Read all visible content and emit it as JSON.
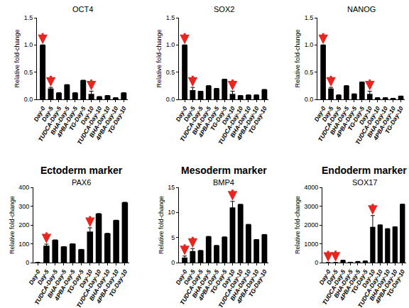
{
  "chart_data": [
    {
      "type": "bar",
      "title": "OCT4",
      "ylabel": "Relative fold-change",
      "categories": [
        "Day-0",
        "Day-5",
        "TUDCA-Day-5",
        "BHA-Day-5",
        "4PBA-Day-5",
        "TG-Day-5",
        "Day-10",
        "TUDCA-Day-10",
        "BHA-Day-10",
        "4PBA-Day-10",
        "TG-Day-10"
      ],
      "values": [
        1.0,
        0.2,
        0.12,
        0.27,
        0.12,
        0.35,
        0.1,
        0.05,
        0.07,
        0.03,
        0.12
      ],
      "errors": [
        null,
        0.02,
        null,
        null,
        null,
        null,
        0.05,
        null,
        null,
        null,
        null
      ],
      "color": "#000000",
      "grid": false,
      "ylim": [
        0,
        1.5
      ],
      "yticks": [
        {
          "value": 0,
          "label": "0.0"
        },
        0.5,
        {
          "value": 1,
          "label": "1.0"
        },
        1.5
      ],
      "annotations": [
        {
          "category": "Day-0",
          "marker": "arrow",
          "color": "#e8251f"
        },
        {
          "category": "Day-5",
          "marker": "arrow",
          "color": "#e8251f"
        },
        {
          "category": "Day-10",
          "marker": "arrow",
          "color": "#e8251f"
        }
      ]
    },
    {
      "type": "bar",
      "title": "SOX2",
      "ylabel": "Relative fold-change",
      "categories": [
        "Day-0",
        "Day-5",
        "TUDCA-Day-5",
        "BHA-Day-5",
        "4PBA-Day-5",
        "TG-Day-5",
        "Day-10",
        "TUDCA-Day-10",
        "BHA-Day-10",
        "4PBA-Day-10",
        "TG-Day-10"
      ],
      "values": [
        1.0,
        0.17,
        0.15,
        0.25,
        0.2,
        0.37,
        0.1,
        0.07,
        0.08,
        0.08,
        0.18
      ],
      "errors": [
        null,
        0.05,
        null,
        null,
        null,
        null,
        0.05,
        null,
        null,
        null,
        null
      ],
      "color": "#000000",
      "grid": false,
      "ylim": [
        0,
        1.5
      ],
      "yticks": [
        {
          "value": 0,
          "label": "0.0"
        },
        0.5,
        {
          "value": 1,
          "label": "1.0"
        },
        1.5
      ],
      "annotations": [
        {
          "category": "Day-0",
          "marker": "arrow",
          "color": "#e8251f"
        },
        {
          "category": "Day-5",
          "marker": "arrow",
          "color": "#e8251f"
        },
        {
          "category": "Day-10",
          "marker": "arrow",
          "color": "#e8251f"
        }
      ]
    },
    {
      "type": "bar",
      "title": "NANOG",
      "ylabel": "Relative fold-change",
      "categories": [
        "Day-0",
        "Day-5",
        "TUDCA-Day-5",
        "BHA-Day-5",
        "4PBA-Day-5",
        "TG-Day-5",
        "Day-10",
        "TUDCA-Day-10",
        "BHA-Day-10",
        "4PBA-Day-10",
        "TG-Day-10"
      ],
      "values": [
        1.0,
        0.2,
        0.08,
        0.25,
        0.1,
        0.32,
        0.1,
        0.03,
        0.03,
        0.02,
        0.06
      ],
      "errors": [
        null,
        0.02,
        null,
        null,
        null,
        null,
        0.05,
        null,
        null,
        null,
        null
      ],
      "color": "#000000",
      "grid": false,
      "ylim": [
        0,
        1.5
      ],
      "yticks": [
        {
          "value": 0,
          "label": "0.0"
        },
        0.5,
        {
          "value": 1,
          "label": "1.0"
        },
        1.5
      ],
      "annotations": [
        {
          "category": "Day-0",
          "marker": "arrow",
          "color": "#e8251f"
        },
        {
          "category": "Day-5",
          "marker": "arrow",
          "color": "#e8251f"
        },
        {
          "category": "Day-10",
          "marker": "arrow",
          "color": "#e8251f"
        }
      ]
    },
    {
      "type": "bar",
      "title": "Ectoderm marker",
      "subtitle": "PAX6",
      "ylabel": "Relative fold-change",
      "categories": [
        "Day-0",
        "Day-5",
        "TUDCA-Day-5",
        "BHA-Day-5",
        "4PBA-Day-5",
        "TG-Day-5",
        "Day-10",
        "TUDCA-Day-10",
        "BHA-Day-10",
        "4PBA-Day-10",
        "TG-Day-10"
      ],
      "values": [
        1,
        90,
        120,
        85,
        100,
        70,
        165,
        260,
        155,
        225,
        320
      ],
      "errors": [
        null,
        8,
        null,
        null,
        null,
        null,
        20,
        null,
        null,
        null,
        null
      ],
      "color": "#000000",
      "grid": false,
      "ylim": [
        0,
        400
      ],
      "yticks": [
        0,
        100,
        200,
        300,
        400
      ],
      "annotations": [
        {
          "category": "Day-5",
          "marker": "arrow",
          "color": "#e8251f"
        },
        {
          "category": "Day-10",
          "marker": "arrow",
          "color": "#e8251f"
        }
      ]
    },
    {
      "type": "bar",
      "title": "Mesoderm marker",
      "subtitle": "BMP4",
      "ylabel": "Relative fold-change",
      "categories": [
        "Day-0",
        "Day-5",
        "TUDCA-Day-5",
        "BHA-Day-5",
        "4PBA-Day-5",
        "TG-Day-5",
        "Day-10",
        "TUDCA-Day-10",
        "BHA-Day-10",
        "4PBA-Day-10",
        "TG-Day-10"
      ],
      "values": [
        1,
        2.3,
        2.4,
        5.2,
        3.4,
        5.1,
        11,
        11.6,
        7.6,
        4.6,
        5.6
      ],
      "errors": [
        0.3,
        0.5,
        null,
        null,
        null,
        null,
        1.2,
        null,
        null,
        null,
        null
      ],
      "color": "#000000",
      "grid": false,
      "ylim": [
        0,
        15
      ],
      "yticks": [
        0,
        5,
        10,
        15
      ],
      "annotations": [
        {
          "category": "Day-0",
          "marker": "arrow",
          "color": "#e8251f"
        },
        {
          "category": "Day-5",
          "marker": "arrow",
          "color": "#e8251f"
        },
        {
          "category": "Day-10",
          "marker": "arrow",
          "color": "#e8251f"
        }
      ]
    },
    {
      "type": "bar",
      "title": "Endoderm marker",
      "subtitle": "SOX17",
      "ylabel": "Relative fold-change",
      "categories": [
        "Day-0",
        "Day-5",
        "TUDCA-Day-5",
        "BHA-Day-5",
        "4PBA-Day-5",
        "TG-Day-5",
        "Day-10",
        "TUDCA-Day-10",
        "BHA-Day-10",
        "4PBA-Day-10",
        "TG-Day-10"
      ],
      "values": [
        1,
        5,
        120,
        20,
        60,
        80,
        1900,
        2000,
        1800,
        1900,
        3100
      ],
      "errors": [
        null,
        null,
        null,
        null,
        null,
        null,
        600,
        null,
        null,
        null,
        null
      ],
      "color": "#000000",
      "grid": false,
      "ylim": [
        0,
        4000
      ],
      "yticks": [
        0,
        1000,
        2000,
        3000,
        4000
      ],
      "annotations": [
        {
          "category": "Day-0",
          "marker": "arrow",
          "color": "#e8251f"
        },
        {
          "category": "Day-5",
          "marker": "arrow",
          "color": "#e8251f"
        },
        {
          "category": "Day-10",
          "marker": "arrow",
          "color": "#e8251f"
        }
      ]
    }
  ]
}
